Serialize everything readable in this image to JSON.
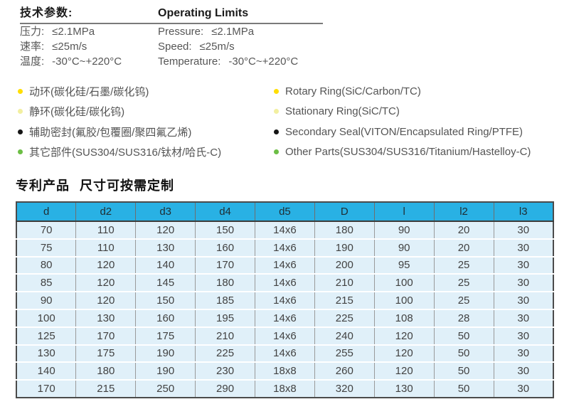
{
  "page": {
    "background": "#ffffff"
  },
  "specs": {
    "title_zh": "技术参数:",
    "title_en": "Operating Limits",
    "rows": [
      {
        "zh_label": "压力:",
        "zh_value": "≤2.1MPa",
        "en_label": "Pressure:",
        "en_value": "≤2.1MPa"
      },
      {
        "zh_label": "速率:",
        "zh_value": "≤25m/s",
        "en_label": "Speed:",
        "en_value": "≤25m/s"
      },
      {
        "zh_label": "温度:",
        "zh_value": "-30°C~+220°C",
        "en_label": "Temperature:",
        "en_value": "-30°C~+220°C"
      }
    ]
  },
  "materials": {
    "items": [
      {
        "bullet_color": "#FFDE00",
        "zh": "动环(碳化硅/石墨/碳化钨)",
        "en": "Rotary Ring(SiC/Carbon/TC)"
      },
      {
        "bullet_color": "#F2EFA0",
        "zh": "静环(碳化硅/碳化钨)",
        "en": "Stationary Ring(SiC/TC)"
      },
      {
        "bullet_color": "#151515",
        "zh": "辅助密封(氟胶/包覆圈/聚四氟乙烯)",
        "en": "Secondary Seal(VITON/Encapsulated Ring/PTFE)"
      },
      {
        "bullet_color": "#6CBE45",
        "zh": "其它部件(SUS304/SUS316/钛材/哈氏-C)",
        "en": "Other Parts(SUS304/SUS316/Titanium/Hastelloy-C)"
      }
    ]
  },
  "patent": {
    "title_part1": "专利产品",
    "title_part2": "尺寸可按需定制"
  },
  "table": {
    "header_bg": "#29B1E4",
    "row_bg": "#E0F0F9",
    "columns": [
      "d",
      "d2",
      "d3",
      "d4",
      "d5",
      "D",
      "l",
      "l2",
      "l3"
    ],
    "rows": [
      [
        "70",
        "110",
        "120",
        "150",
        "14x6",
        "180",
        "90",
        "20",
        "30"
      ],
      [
        "75",
        "110",
        "130",
        "160",
        "14x6",
        "190",
        "90",
        "20",
        "30"
      ],
      [
        "80",
        "120",
        "140",
        "170",
        "14x6",
        "200",
        "95",
        "25",
        "30"
      ],
      [
        "85",
        "120",
        "145",
        "180",
        "14x6",
        "210",
        "100",
        "25",
        "30"
      ],
      [
        "90",
        "120",
        "150",
        "185",
        "14x6",
        "215",
        "100",
        "25",
        "30"
      ],
      [
        "100",
        "130",
        "160",
        "195",
        "14x6",
        "225",
        "108",
        "28",
        "30"
      ],
      [
        "125",
        "170",
        "175",
        "210",
        "14x6",
        "240",
        "120",
        "50",
        "30"
      ],
      [
        "130",
        "175",
        "190",
        "225",
        "14x6",
        "255",
        "120",
        "50",
        "30"
      ],
      [
        "140",
        "180",
        "190",
        "230",
        "18x8",
        "260",
        "120",
        "50",
        "30"
      ],
      [
        "170",
        "215",
        "250",
        "290",
        "18x8",
        "320",
        "130",
        "50",
        "30"
      ]
    ]
  }
}
